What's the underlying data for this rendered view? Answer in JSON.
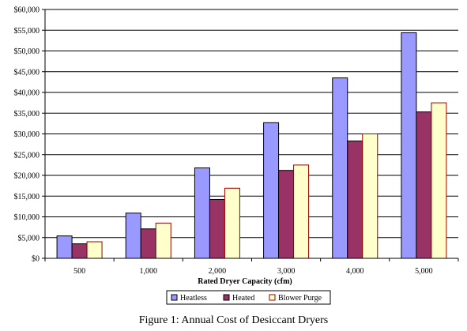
{
  "chart_data": {
    "type": "bar",
    "categories": [
      "500",
      "1,000",
      "2,000",
      "3,000",
      "4,000",
      "5,000"
    ],
    "series": [
      {
        "name": "Heatless",
        "color": "#9999ff",
        "values": [
          5400,
          10900,
          21800,
          32700,
          43500,
          54400
        ]
      },
      {
        "name": "Heated",
        "color": "#993366",
        "values": [
          3500,
          7100,
          14200,
          21200,
          28300,
          35300
        ]
      },
      {
        "name": "Blower Purge",
        "color": "#ffffcc",
        "stroke": "#990000",
        "values": [
          4000,
          8500,
          16900,
          22500,
          30000,
          37500
        ]
      }
    ],
    "y_ticks": [
      "$0",
      "$5,000",
      "$10,000",
      "$15,000",
      "$20,000",
      "$25,000",
      "$30,000",
      "$35,000",
      "$40,000",
      "$45,000",
      "$50,000",
      "$55,000",
      "$60,000"
    ],
    "ylim": [
      0,
      60000
    ],
    "y_step": 5000,
    "xlabel": "Rated Dryer Capacity (cfm)",
    "ylabel": "",
    "grid": true,
    "legend_position": "bottom"
  },
  "caption": "Figure 1: Annual Cost of Desiccant Dryers"
}
